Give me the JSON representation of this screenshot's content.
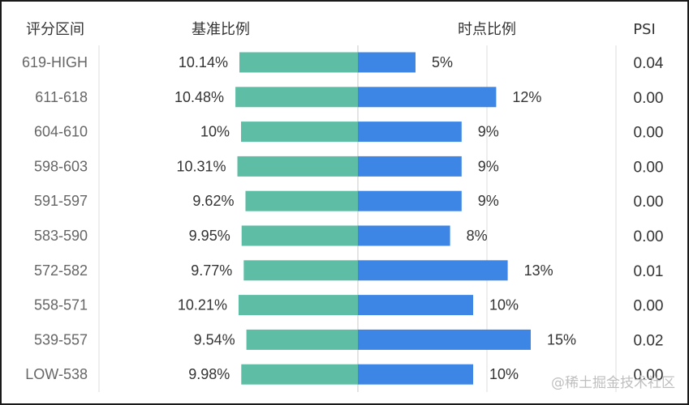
{
  "headers": {
    "range": "评分区间",
    "base": "基准比例",
    "point": "时点比例",
    "psi": "PSI"
  },
  "watermark": "@稀土掘金技术社区",
  "colors": {
    "base_bar": "#5dbea5",
    "point_bar": "#3d86e6",
    "grid": "#dddddd",
    "center_line": "#c9c9c9"
  },
  "chart_data": {
    "type": "bar",
    "layout": "butterfly",
    "categories": [
      "619-HIGH",
      "611-618",
      "604-610",
      "598-603",
      "591-597",
      "583-590",
      "572-582",
      "558-571",
      "539-557",
      "LOW-538"
    ],
    "series": [
      {
        "name": "基准比例",
        "values": [
          10.14,
          10.48,
          10,
          10.31,
          9.62,
          9.95,
          9.77,
          10.21,
          9.54,
          9.98
        ],
        "labels": [
          "10.14%",
          "10.48%",
          "10%",
          "10.31%",
          "9.62%",
          "9.95%",
          "9.77%",
          "10.21%",
          "9.54%",
          "9.98%"
        ]
      },
      {
        "name": "时点比例",
        "values": [
          5,
          12,
          9,
          9,
          9,
          8,
          13,
          10,
          15,
          10
        ],
        "labels": [
          "5%",
          "12%",
          "9%",
          "9%",
          "9%",
          "8%",
          "13%",
          "10%",
          "15%",
          "10%"
        ]
      }
    ],
    "psi": [
      "0.04",
      "0.00",
      "0.00",
      "0.00",
      "0.00",
      "0.00",
      "0.01",
      "0.00",
      "0.02",
      "0.00"
    ]
  }
}
